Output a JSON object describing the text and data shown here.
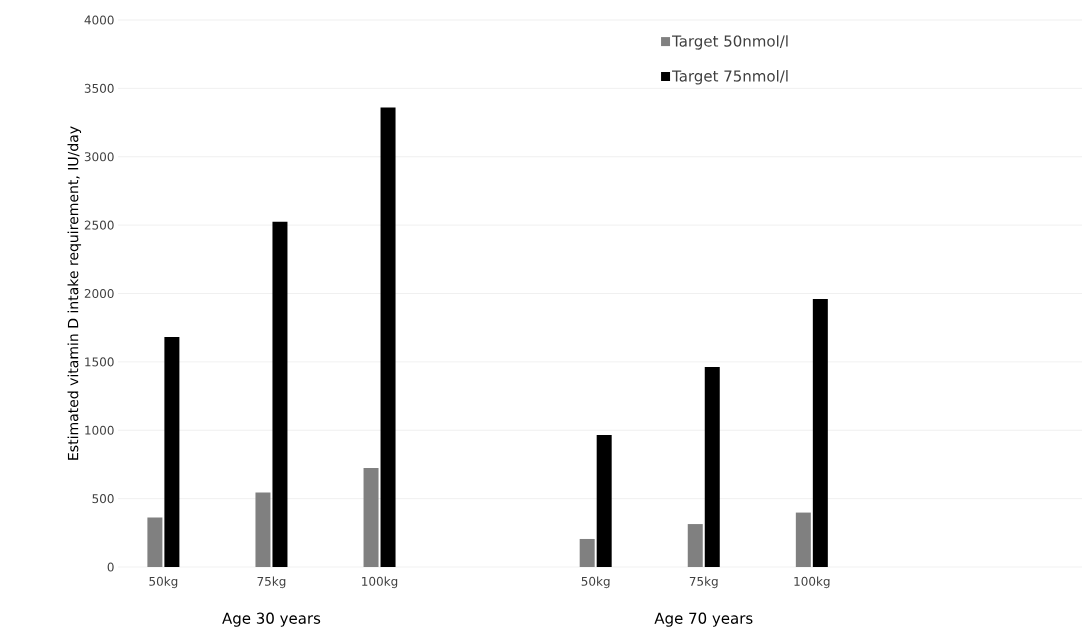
{
  "chart_data": {
    "type": "bar",
    "ylabel": "Estimated vitamin D intake requirement,  IU/day",
    "categories": [
      "50kg",
      "75kg",
      "100kg",
      null,
      "50kg",
      "75kg",
      "100kg",
      null,
      null
    ],
    "series": [
      {
        "name": "Target 50nmol/l",
        "color": "#808080",
        "values": [
          362,
          545,
          724,
          null,
          205,
          314,
          398,
          null,
          null
        ]
      },
      {
        "name": "Target 75nmol/l",
        "color": "#000000",
        "values": [
          1682,
          2525,
          3360,
          null,
          965,
          1462,
          1960,
          null,
          null
        ]
      }
    ],
    "annotations": [
      "Age 30 years",
      "Age 70 years"
    ],
    "ylim": [
      0,
      4000
    ],
    "yticks": [
      0,
      500,
      1000,
      1500,
      2000,
      2500,
      3000,
      3500,
      4000
    ],
    "grid": "y",
    "legend": "top right"
  }
}
